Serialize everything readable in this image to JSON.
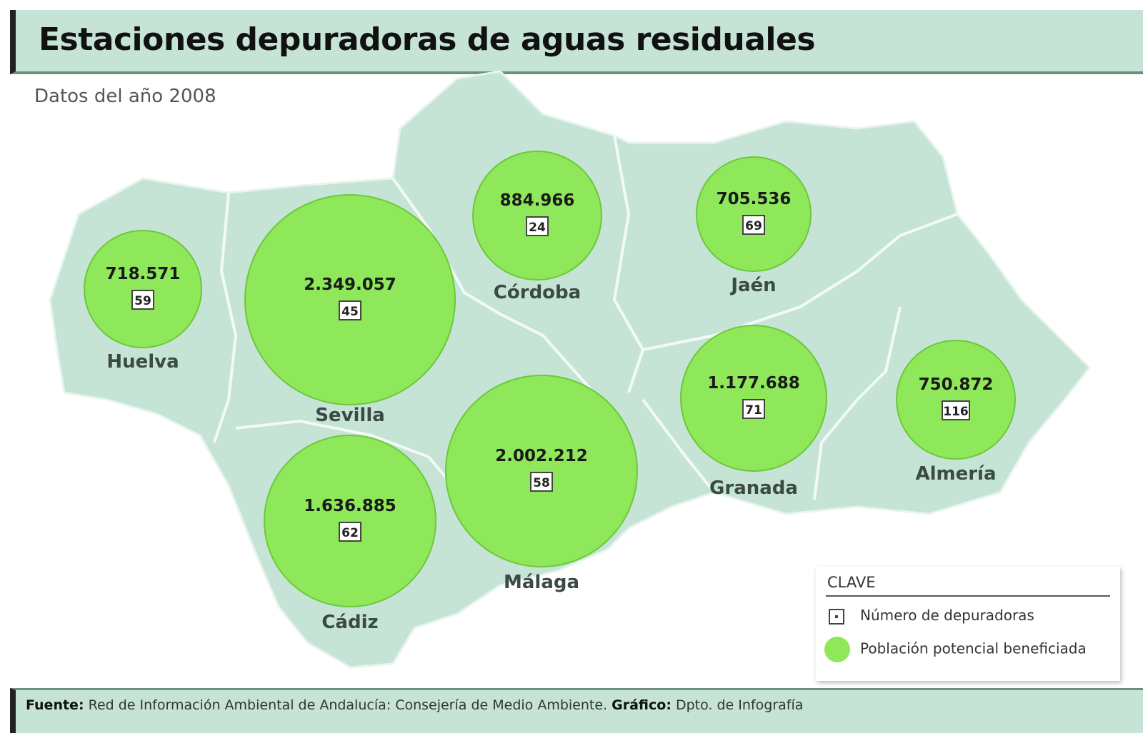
{
  "title": "Estaciones depuradoras de aguas residuales",
  "subtitle": "Datos del año 2008",
  "colors": {
    "map_fill": "#c5e4d6",
    "border": "#ffffff",
    "circle": "#8fe85a",
    "circle_stroke": "#6cc83a",
    "header_bg": "#c5e4d6"
  },
  "provinces": [
    {
      "name": "Huelva",
      "population": "718.571",
      "plants": "59"
    },
    {
      "name": "Sevilla",
      "population": "2.349.057",
      "plants": "45"
    },
    {
      "name": "Córdoba",
      "population": "884.966",
      "plants": "24"
    },
    {
      "name": "Jaén",
      "population": "705.536",
      "plants": "69"
    },
    {
      "name": "Granada",
      "population": "1.177.688",
      "plants": "71"
    },
    {
      "name": "Almería",
      "population": "750.872",
      "plants": "116"
    },
    {
      "name": "Cádiz",
      "population": "1.636.885",
      "plants": "62"
    },
    {
      "name": "Málaga",
      "population": "2.002.212",
      "plants": "58"
    }
  ],
  "legend": {
    "title": "CLAVE",
    "box_label": "Número de depuradoras",
    "circle_label": "Población potencial beneficiada"
  },
  "footer": {
    "source_label": "Fuente:",
    "source_text": "Red de Información Ambiental de Andalucía: Consejería de Medio Ambiente.",
    "graphic_label": "Gráfico:",
    "graphic_text": "Dpto. de Infografía"
  }
}
